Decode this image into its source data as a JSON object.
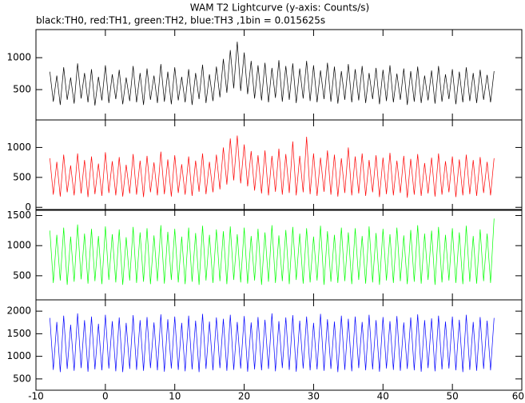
{
  "chart_data": {
    "type": "line",
    "title": "WAM T2 Lightcurve (y-axis: Counts/s)",
    "subtitle": "black:TH0, red:TH1, green:TH2, blue:TH3 ,1bin = 0.015625s",
    "xlim": [
      -10,
      60
    ],
    "xticks": [
      -10,
      0,
      10,
      20,
      30,
      40,
      50,
      60
    ],
    "x": [
      -8,
      -7.5,
      -7,
      -6.5,
      -6,
      -5.5,
      -5,
      -4.5,
      -4,
      -3.5,
      -3,
      -2.5,
      -2,
      -1.5,
      -1,
      -0.5,
      0,
      0.5,
      1,
      1.5,
      2,
      2.5,
      3,
      3.5,
      4,
      4.5,
      5,
      5.5,
      6,
      6.5,
      7,
      7.5,
      8,
      8.5,
      9,
      9.5,
      10,
      10.5,
      11,
      11.5,
      12,
      12.5,
      13,
      13.5,
      14,
      14.5,
      15,
      15.5,
      16,
      16.5,
      17,
      17.5,
      18,
      18.5,
      19,
      19.5,
      20,
      20.5,
      21,
      21.5,
      22,
      22.5,
      23,
      23.5,
      24,
      24.5,
      25,
      25.5,
      26,
      26.5,
      27,
      27.5,
      28,
      28.5,
      29,
      29.5,
      30,
      30.5,
      31,
      31.5,
      32,
      32.5,
      33,
      33.5,
      34,
      34.5,
      35,
      35.5,
      36,
      36.5,
      37,
      37.5,
      38,
      38.5,
      39,
      39.5,
      40,
      40.5,
      41,
      41.5,
      42,
      42.5,
      43,
      43.5,
      44,
      44.5,
      45,
      45.5,
      46,
      46.5,
      47,
      47.5,
      48,
      48.5,
      49,
      49.5,
      50,
      50.5,
      51,
      51.5,
      52,
      52.5,
      53,
      53.5,
      54,
      54.5,
      55,
      55.5,
      56
    ],
    "series": [
      {
        "color": "#000000",
        "ylim": [
          25,
          1440
        ],
        "yticks": [
          500,
          1000
        ],
        "values": [
          780,
          310,
          720,
          260,
          850,
          340,
          690,
          280,
          910,
          360,
          760,
          300,
          820,
          250,
          700,
          330,
          880,
          290,
          740,
          350,
          810,
          270,
          690,
          320,
          870,
          300,
          760,
          260,
          830,
          340,
          720,
          290,
          900,
          310,
          780,
          270,
          850,
          330,
          700,
          300,
          820,
          260,
          760,
          350,
          890,
          290,
          740,
          320,
          860,
          380,
          980,
          450,
          1120,
          520,
          1250,
          480,
          1080,
          430,
          950,
          360,
          880,
          330,
          920,
          300,
          840,
          370,
          960,
          310,
          870,
          340,
          910,
          290,
          830,
          360,
          950,
          320,
          880,
          300,
          800,
          350,
          920,
          310,
          860,
          280,
          790,
          340,
          900,
          300,
          820,
          330,
          870,
          290,
          760,
          350,
          840,
          270,
          810,
          320,
          880,
          300,
          750,
          340,
          830,
          260,
          790,
          310,
          860,
          290,
          720,
          330,
          800,
          280,
          870,
          310,
          740,
          350,
          820,
          270,
          780,
          300,
          850,
          320,
          760,
          290,
          810,
          340,
          730,
          300,
          790
        ]
      },
      {
        "color": "#ff0000",
        "ylim": [
          -50,
          1460
        ],
        "yticks": [
          0,
          500,
          1000
        ],
        "values": [
          820,
          210,
          760,
          180,
          880,
          250,
          700,
          200,
          900,
          230,
          790,
          170,
          850,
          220,
          730,
          190,
          920,
          240,
          770,
          200,
          840,
          180,
          710,
          230,
          890,
          210,
          780,
          170,
          860,
          250,
          750,
          200,
          930,
          220,
          800,
          180,
          870,
          240,
          720,
          210,
          850,
          190,
          780,
          260,
          900,
          220,
          760,
          250,
          880,
          300,
          1000,
          380,
          1150,
          450,
          1200,
          400,
          1050,
          350,
          940,
          280,
          870,
          230,
          950,
          200,
          860,
          260,
          980,
          210,
          890,
          240,
          1100,
          200,
          860,
          250,
          1180,
          220,
          900,
          190,
          830,
          260,
          950,
          210,
          880,
          180,
          820,
          240,
          1000,
          200,
          850,
          230,
          900,
          190,
          790,
          250,
          870,
          170,
          830,
          220,
          910,
          200,
          780,
          240,
          860,
          160,
          810,
          210,
          890,
          190,
          740,
          230,
          830,
          180,
          900,
          210,
          770,
          250,
          850,
          170,
          800,
          200,
          880,
          220,
          790,
          190,
          840,
          240,
          760,
          200,
          820
        ]
      },
      {
        "color": "#00ff00",
        "ylim": [
          100,
          1600
        ],
        "yticks": [
          500,
          1000,
          1500
        ],
        "values": [
          1250,
          380,
          1180,
          420,
          1300,
          350,
          1150,
          400,
          1350,
          440,
          1200,
          370,
          1280,
          410,
          1160,
          360,
          1320,
          430,
          1190,
          390,
          1270,
          350,
          1140,
          420,
          1310,
          380,
          1220,
          400,
          1290,
          360,
          1170,
          410,
          1340,
          370,
          1230,
          430,
          1280,
          390,
          1150,
          360,
          1300,
          400,
          1210,
          350,
          1330,
          420,
          1180,
          380,
          1270,
          410,
          1240,
          360,
          1320,
          430,
          1190,
          390,
          1300,
          370,
          1160,
          420,
          1280,
          350,
          1220,
          400,
          1340,
          380,
          1170,
          410,
          1260,
          360,
          1310,
          430,
          1200,
          370,
          1290,
          390,
          1150,
          420,
          1330,
          350,
          1240,
          400,
          1180,
          380,
          1300,
          410,
          1220,
          360,
          1290,
          430,
          1160,
          370,
          1320,
          390,
          1210,
          350,
          1280,
          420,
          1190,
          380,
          1300,
          410,
          1170,
          360,
          1260,
          400,
          1340,
          370,
          1200,
          430,
          1250,
          350,
          1310,
          390,
          1180,
          420,
          1290,
          380,
          1220,
          360,
          1330,
          400,
          1160,
          370,
          1270,
          410,
          1200,
          380,
          1450
        ]
      },
      {
        "color": "#0000ff",
        "ylim": [
          250,
          2250
        ],
        "yticks": [
          500,
          1000,
          1500,
          2000
        ],
        "values": [
          1850,
          700,
          1760,
          650,
          1900,
          720,
          1700,
          680,
          1950,
          740,
          1800,
          660,
          1880,
          710,
          1720,
          690,
          1920,
          730,
          1780,
          670,
          1860,
          650,
          1740,
          720,
          1910,
          700,
          1800,
          680,
          1870,
          740,
          1750,
          690,
          1930,
          660,
          1820,
          730,
          1880,
          700,
          1740,
          670,
          1900,
          710,
          1790,
          650,
          1940,
          720,
          1770,
          690,
          1860,
          740,
          1830,
          680,
          1920,
          700,
          1760,
          730,
          1890,
          660,
          1750,
          710,
          1870,
          690,
          1810,
          720,
          1950,
          670,
          1780,
          740,
          1860,
          700,
          1910,
          660,
          1790,
          730,
          1880,
          690,
          1740,
          710,
          1940,
          680,
          1820,
          720,
          1770,
          650,
          1900,
          700,
          1830,
          670,
          1880,
          740,
          1760,
          690,
          1920,
          710,
          1800,
          660,
          1870,
          730,
          1780,
          700,
          1890,
          680,
          1750,
          720,
          1860,
          690,
          1930,
          660,
          1800,
          740,
          1840,
          670,
          1900,
          710,
          1770,
          730,
          1880,
          690,
          1810,
          650,
          1920,
          700,
          1760,
          680,
          1870,
          720,
          1790,
          690,
          1850
        ]
      }
    ]
  }
}
